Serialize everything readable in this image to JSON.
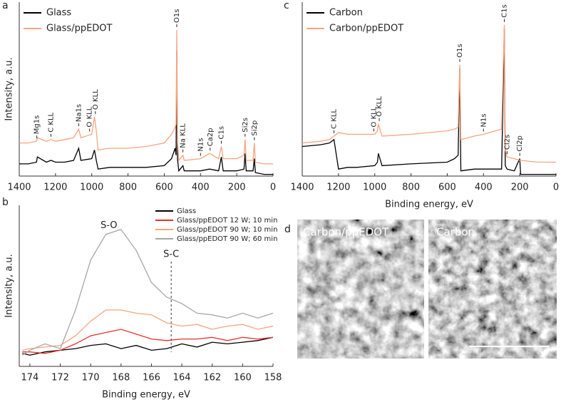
{
  "chart_data": [
    {
      "panel": "a",
      "type": "line",
      "ylabel": "Intensity, a.u.",
      "legend": "upper left",
      "xlim": [
        1400,
        0
      ],
      "ylim": [
        0,
        100
      ],
      "xticks": [
        1400,
        1200,
        1000,
        800,
        600,
        400,
        200,
        0
      ],
      "x": [
        1400,
        1350,
        1305,
        1300,
        1250,
        1225,
        1200,
        1150,
        1100,
        1072,
        1060,
        1000,
        985,
        975,
        965,
        900,
        800,
        700,
        600,
        560,
        540,
        535,
        531,
        527,
        520,
        497,
        490,
        400,
        350,
        300,
        285,
        275,
        200,
        160,
        154,
        148,
        110,
        103,
        97,
        50,
        0
      ],
      "series": [
        {
          "name": "Glass",
          "color": "#000000",
          "values": [
            7,
            7,
            8,
            11,
            8,
            9,
            8,
            8,
            9,
            16,
            9,
            10,
            15,
            9,
            4,
            5,
            5,
            5,
            6,
            10,
            16,
            12,
            72,
            10,
            3,
            6,
            3,
            3,
            4,
            3,
            11,
            3,
            3,
            4,
            13,
            3,
            3,
            10,
            2,
            1,
            1
          ]
        },
        {
          "name": "Glass/ppEDOT",
          "color": "#f7a47e",
          "values": [
            19,
            19,
            20,
            22,
            20,
            21,
            20,
            21,
            22,
            27,
            22,
            24,
            34,
            26,
            15,
            16,
            16,
            17,
            19,
            24,
            28,
            30,
            84,
            20,
            9,
            12,
            9,
            10,
            13,
            10,
            17,
            10,
            10,
            12,
            21,
            9,
            9,
            19,
            8,
            7,
            7
          ]
        }
      ],
      "annotations": [
        {
          "text": "Mg1s",
          "x": 1303
        },
        {
          "text": "C KLL",
          "x": 1225
        },
        {
          "text": "Na1s",
          "x": 1072
        },
        {
          "text": "O KLL",
          "x": 1012
        },
        {
          "text": "O KLL",
          "x": 980
        },
        {
          "text": "O1s",
          "x": 531
        },
        {
          "text": "Na KLL",
          "x": 497
        },
        {
          "text": "N1s",
          "x": 400
        },
        {
          "text": "Ca2p",
          "x": 347
        },
        {
          "text": "C1s",
          "x": 285
        },
        {
          "text": "Si2s",
          "x": 154
        },
        {
          "text": "Si2p",
          "x": 103
        }
      ]
    },
    {
      "panel": "b",
      "type": "line",
      "ylabel": "Intensity, a.u.",
      "xlabel": "Binding energy, eV",
      "legend": "upper right",
      "xlim": [
        174.7,
        158
      ],
      "ylim": [
        0,
        100
      ],
      "xticks": [
        174,
        172,
        170,
        168,
        166,
        164,
        162,
        160,
        158
      ],
      "x": [
        174.5,
        174,
        173,
        172,
        171,
        170,
        169,
        168,
        167,
        166,
        165,
        164,
        163,
        162,
        161,
        160,
        159,
        158
      ],
      "series": [
        {
          "name": "Glass",
          "color": "#000000",
          "values": [
            8,
            7,
            9,
            10,
            11,
            13,
            14,
            11,
            13,
            10,
            11,
            14,
            12,
            15,
            14,
            15,
            16,
            18
          ]
        },
        {
          "name": "Glass/ppEDOT 12 W; 10 min",
          "color": "#e8302a",
          "values": [
            9,
            9,
            8,
            10,
            14,
            19,
            21,
            23,
            20,
            17,
            16,
            17,
            17,
            18,
            16,
            18,
            17,
            18
          ]
        },
        {
          "name": "Glass/ppEDOT 90 W; 10 min",
          "color": "#f7a47e",
          "values": [
            10,
            11,
            12,
            13,
            19,
            28,
            35,
            35,
            33,
            32,
            27,
            25,
            26,
            23,
            25,
            26,
            23,
            25
          ]
        },
        {
          "name": "Glass/ppEDOT 90 W; 60 min",
          "color": "#a6a6a6",
          "values": [
            7,
            10,
            14,
            11,
            35,
            66,
            82,
            85,
            72,
            52,
            43,
            39,
            33,
            32,
            30,
            33,
            30,
            33
          ]
        }
      ],
      "annotations": [
        {
          "text": "S-O",
          "x": 168.8
        },
        {
          "text": "S-C",
          "x": 164.7,
          "vline": true
        }
      ]
    },
    {
      "panel": "c",
      "type": "line",
      "xlabel": "Binding energy, eV",
      "legend": "upper left",
      "xlim": [
        1400,
        0
      ],
      "ylim": [
        0,
        100
      ],
      "xticks": [
        1400,
        1200,
        1000,
        800,
        600,
        400,
        200,
        0
      ],
      "x": [
        1400,
        1300,
        1250,
        1225,
        1200,
        1150,
        1100,
        1000,
        985,
        980,
        960,
        800,
        600,
        560,
        540,
        531,
        525,
        450,
        400,
        300,
        285,
        280,
        270,
        230,
        200,
        195,
        100,
        0
      ],
      "series": [
        {
          "name": "Carbon",
          "color": "#000000",
          "values": [
            17,
            18,
            19,
            21,
            4,
            5,
            5,
            6,
            8,
            13,
            6,
            7,
            8,
            10,
            12,
            62,
            3,
            4,
            4,
            4,
            85,
            6,
            4,
            3,
            10,
            1,
            1,
            1
          ]
        },
        {
          "name": "Carbon/ppEDOT",
          "color": "#f7a47e",
          "values": [
            19,
            20,
            21,
            23,
            25,
            24,
            24,
            24,
            26,
            30,
            23,
            24,
            26,
            27,
            28,
            64,
            21,
            23,
            24,
            27,
            87,
            15,
            11,
            10,
            9,
            9,
            8,
            8
          ]
        }
      ],
      "annotations": [
        {
          "text": "C KLL",
          "x": 1225
        },
        {
          "text": "O KLL",
          "x": 1005
        },
        {
          "text": "O KLL",
          "x": 975
        },
        {
          "text": "O1s",
          "x": 531
        },
        {
          "text": "N1s",
          "x": 400
        },
        {
          "text": "C1s",
          "x": 285
        },
        {
          "text": "Cl2s",
          "x": 270
        },
        {
          "text": "Cl2p",
          "x": 200
        }
      ]
    }
  ],
  "images": {
    "panel": "d",
    "labels": [
      "Carbon/ppEDOT",
      "Carbon"
    ]
  }
}
